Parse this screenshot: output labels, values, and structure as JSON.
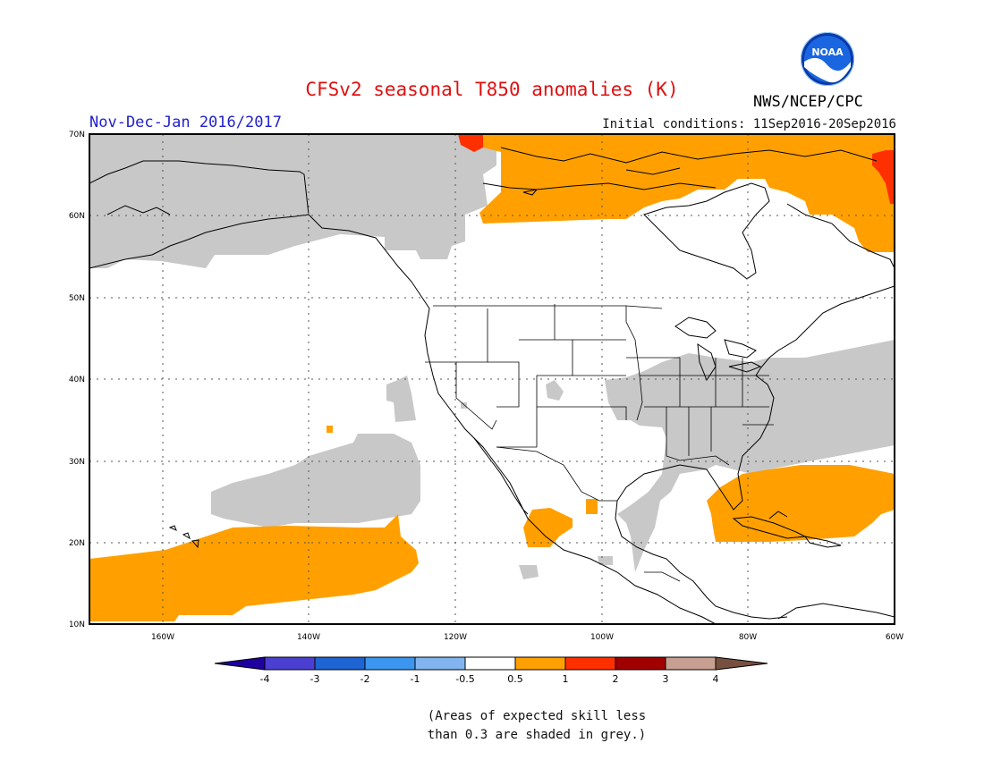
{
  "header": {
    "title": "CFSv2 seasonal T850 anomalies (K)",
    "season": "Nov-Dec-Jan 2016/2017",
    "initial_conditions": "Initial conditions: 11Sep2016-20Sep2016",
    "agency": "NWS/NCEP/CPC",
    "logo_text": "NOAA"
  },
  "map": {
    "region": "North America",
    "lat_labels": [
      "70N",
      "60N",
      "50N",
      "40N",
      "30N",
      "20N",
      "10N"
    ],
    "lon_labels": [
      "160W",
      "140W",
      "120W",
      "100W",
      "80W",
      "60W"
    ],
    "grid": "dotted"
  },
  "colorbar": {
    "labels": [
      "-4",
      "-3",
      "-2",
      "-1",
      "-0.5",
      "0.5",
      "1",
      "2",
      "3",
      "4"
    ],
    "colors": [
      "#1e00a0",
      "#4a3fd0",
      "#1e64d2",
      "#3c96f0",
      "#82b4f0",
      "#ffffff",
      "#ffa000",
      "#ff3000",
      "#a00000",
      "#c8a092",
      "#785040"
    ]
  },
  "legend_colors": {
    "grey_low_skill": "#c8c8c8",
    "anomaly_0_5_to_1": "#ffa000",
    "anomaly_1_to_2": "#ff3000"
  },
  "footnote": {
    "line1": "(Areas of expected skill less",
    "line2": "than 0.3 are shaded in grey.)"
  }
}
